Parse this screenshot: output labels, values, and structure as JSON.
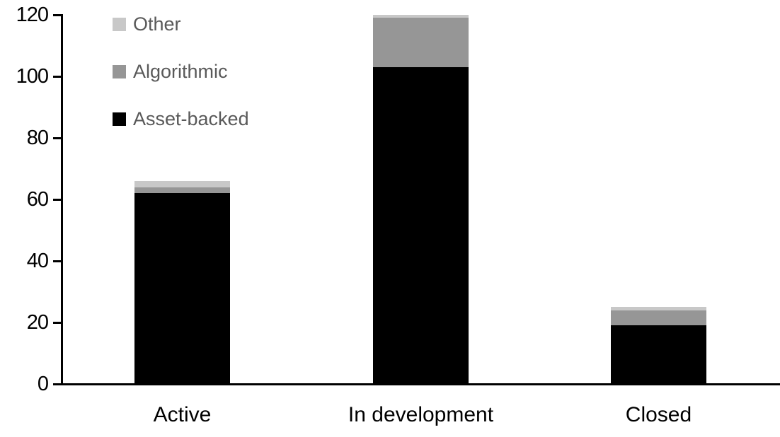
{
  "chart_data": {
    "type": "bar",
    "stacked": true,
    "title": "",
    "categories": [
      "Active",
      "In development",
      "Closed"
    ],
    "series": [
      {
        "name": "Asset-backed",
        "color": "#000000",
        "values": [
          62,
          103,
          19
        ]
      },
      {
        "name": "Algorithmic",
        "color": "#969696",
        "values": [
          2,
          16,
          5
        ]
      },
      {
        "name": "Other",
        "color": "#c8c8c8",
        "values": [
          2,
          1,
          1
        ]
      }
    ],
    "totals": [
      66,
      120,
      25
    ],
    "y_axis": {
      "min": 0,
      "max": 120,
      "step": 20,
      "ticks": [
        0,
        20,
        40,
        60,
        80,
        100,
        120
      ]
    },
    "x_axis": {
      "label": "",
      "tick_labels": [
        "Active",
        "In development",
        "Closed"
      ]
    },
    "legend": {
      "position": "top-left",
      "order_top_to_bottom": [
        "Other",
        "Algorithmic",
        "Asset-backed"
      ],
      "text_color": "#595959"
    },
    "grid": false,
    "axis_color": "#000000",
    "background_color": "#ffffff"
  }
}
